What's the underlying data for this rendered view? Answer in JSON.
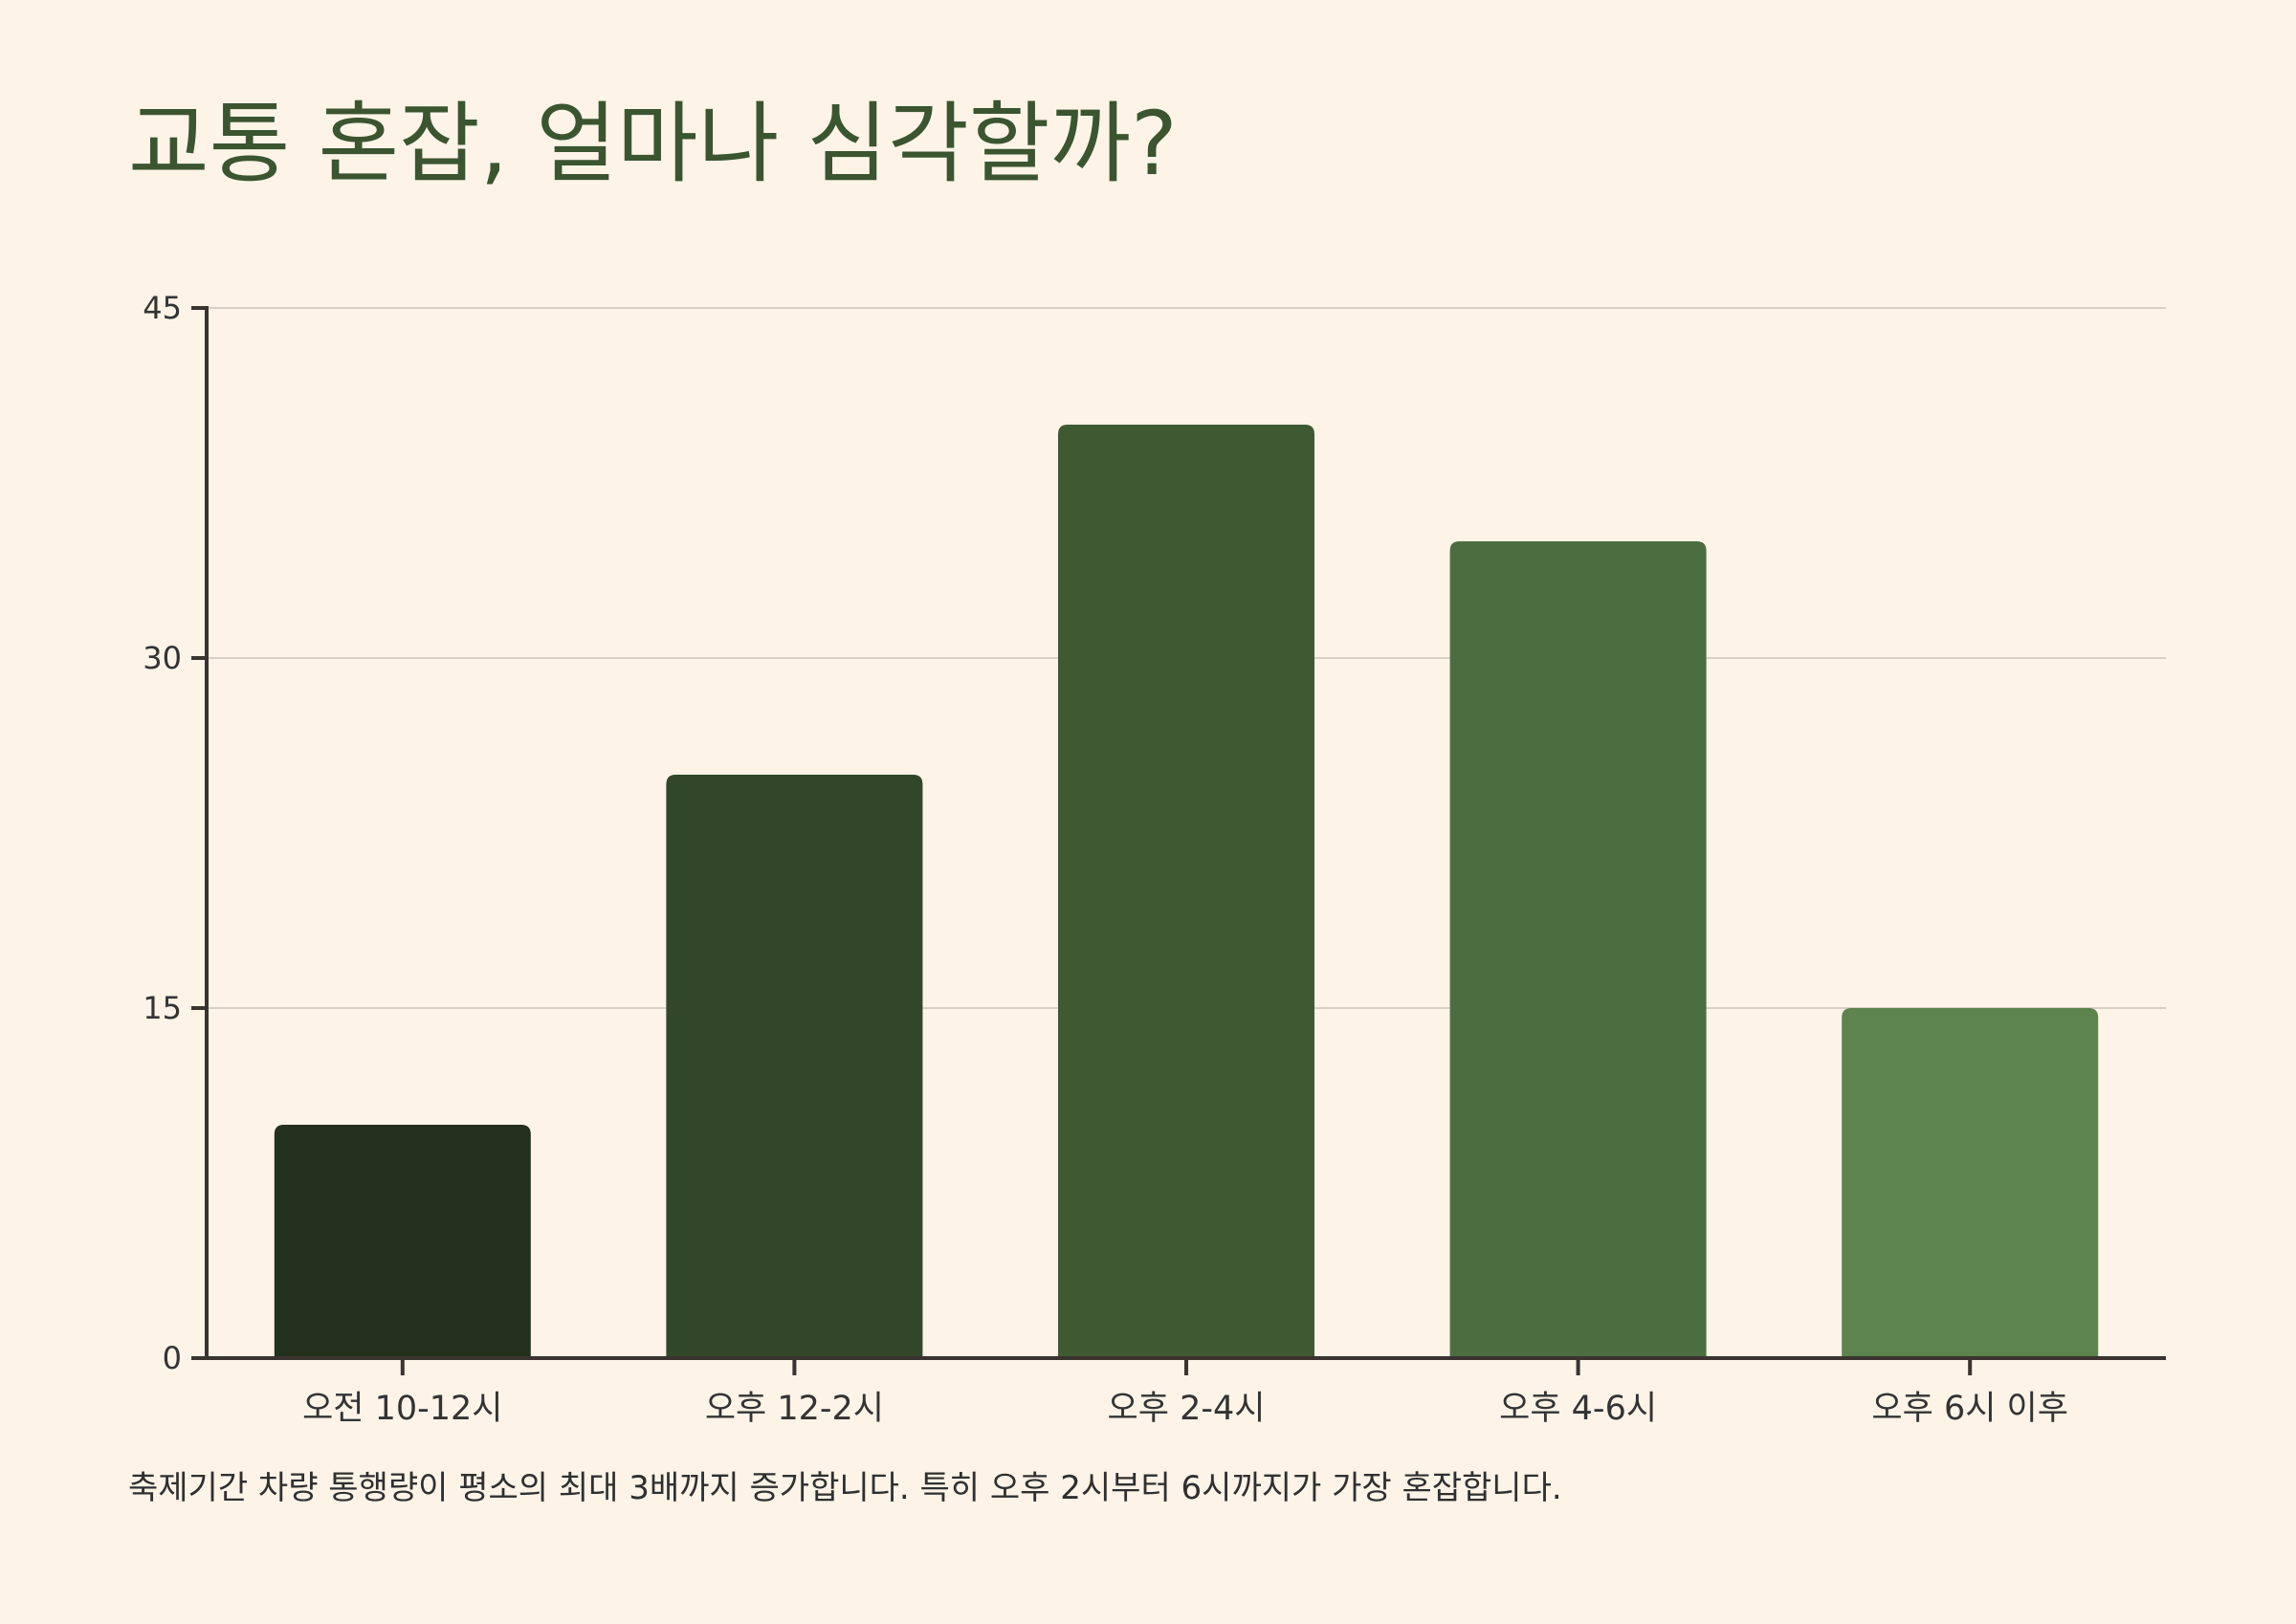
{
  "chart_data": {
    "type": "bar",
    "title": "교통 혼잡, 얼마나 심각할까?",
    "caption": "축제기간 차량 통행량이 평소의 최대 3배까지 증가합니다. 특히 오후 2시부터 6시까지가 가장 혼잡합니다.",
    "categories": [
      "오전 10-12시",
      "오후 12-2시",
      "오후 2-4시",
      "오후 4-6시",
      "오후 6시 이후"
    ],
    "values": [
      10,
      25,
      40,
      35,
      15
    ],
    "yticks": [
      "0",
      "15",
      "30",
      "45"
    ],
    "ylim": [
      0,
      45
    ],
    "grid": true,
    "legend": "none",
    "colors": [
      "#22301c",
      "#324629",
      "#3f5a33",
      "#4b6e41",
      "#5d834e"
    ],
    "axis_color": "#3b3330",
    "grid_color": "#d8d0c4",
    "title_color": "#3a5530",
    "background": "#fdf3e7"
  }
}
